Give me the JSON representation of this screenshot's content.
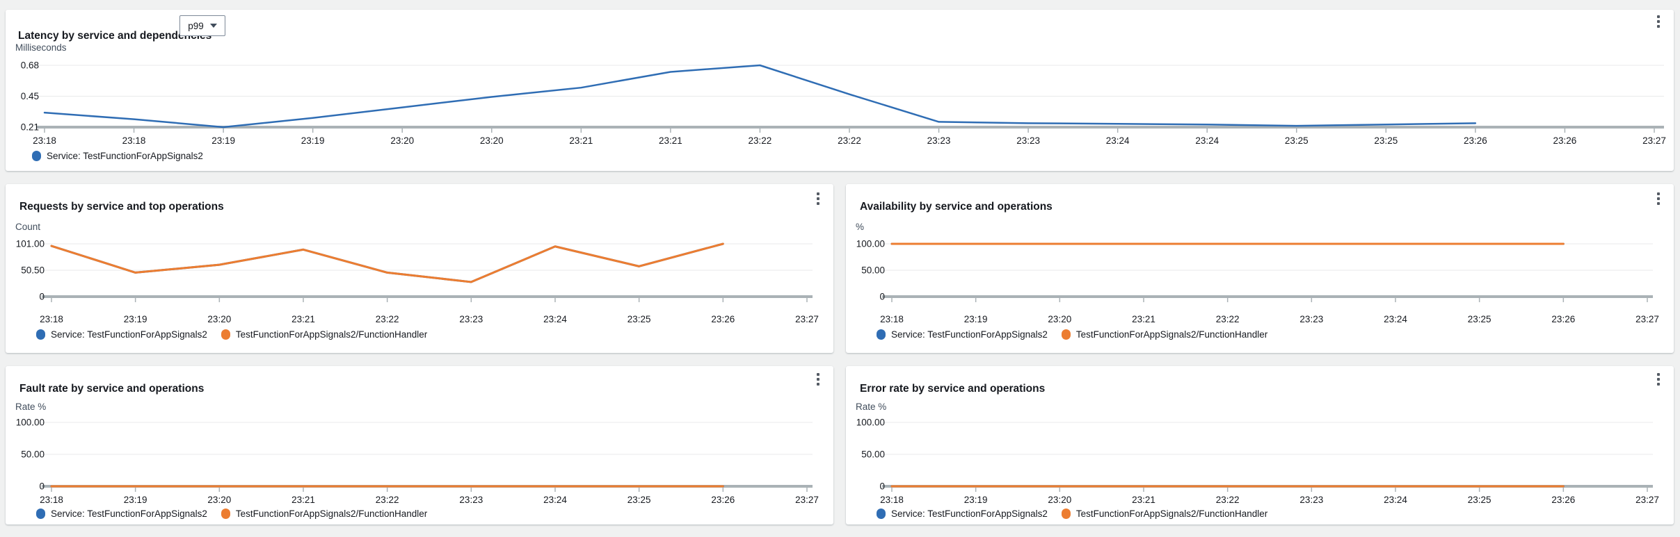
{
  "page": {
    "background": "#f0f1f1"
  },
  "colors": {
    "card_background": "#ffffff",
    "title_text": "#16191f",
    "tick_text": "#16191f",
    "unit_text": "#414d5c",
    "gridline": "#e9eaeb",
    "axis_line": "#aab2b6",
    "menu_icon": "#545b64",
    "dropdown_border": "#7d8998",
    "series_blue": "#2f6db4",
    "series_orange": "#ec7d31"
  },
  "panels": [
    {
      "title": "Latency by service and dependencies",
      "statistic_dropdown": {
        "value": "p99"
      },
      "menu_icon": "kebab-menu-icon",
      "unit": "Milliseconds",
      "legend": [
        {
          "color": "#2f6db4",
          "label": "Service: TestFunctionForAppSignals2"
        }
      ]
    },
    {
      "title": "Requests by service and top operations",
      "menu_icon": "kebab-menu-icon",
      "unit": "Count",
      "legend": [
        {
          "color": "#2f6db4",
          "label": "Service: TestFunctionForAppSignals2"
        },
        {
          "color": "#ec7d31",
          "label": "TestFunctionForAppSignals2/FunctionHandler"
        }
      ]
    },
    {
      "title": "Availability by service and operations",
      "menu_icon": "kebab-menu-icon",
      "unit": "%",
      "legend": [
        {
          "color": "#2f6db4",
          "label": "Service: TestFunctionForAppSignals2"
        },
        {
          "color": "#ec7d31",
          "label": "TestFunctionForAppSignals2/FunctionHandler"
        }
      ]
    },
    {
      "title": "Fault rate by service and operations",
      "menu_icon": "kebab-menu-icon",
      "unit": "Rate %",
      "legend": [
        {
          "color": "#2f6db4",
          "label": "Service: TestFunctionForAppSignals2"
        },
        {
          "color": "#ec7d31",
          "label": "TestFunctionForAppSignals2/FunctionHandler"
        }
      ]
    },
    {
      "title": "Error rate by service and operations",
      "menu_icon": "kebab-menu-icon",
      "unit": "Rate %",
      "legend": [
        {
          "color": "#2f6db4",
          "label": "Service: TestFunctionForAppSignals2"
        },
        {
          "color": "#ec7d31",
          "label": "TestFunctionForAppSignals2/FunctionHandler"
        }
      ]
    }
  ],
  "chart_data": [
    {
      "id": "latency",
      "type": "line",
      "title": "Latency by service and dependencies",
      "statistic": "p99",
      "ylabel": "Milliseconds",
      "x_tick_labels": [
        "23:18",
        "23:18",
        "23:19",
        "23:19",
        "23:20",
        "23:20",
        "23:21",
        "23:21",
        "23:22",
        "23:22",
        "23:23",
        "23:23",
        "23:24",
        "23:24",
        "23:25",
        "23:25",
        "23:26",
        "23:26",
        "23:27"
      ],
      "x_tick_interval_seconds": 30,
      "y_tick_labels": [
        "0.68",
        "0.45",
        "0.21"
      ],
      "ylim": [
        0.21,
        0.68
      ],
      "grid": true,
      "legend_position": "bottom-left",
      "series": [
        {
          "name": "Service: TestFunctionForAppSignals2",
          "color": "#2f6db4",
          "x_start": "23:18",
          "x_end": "23:26",
          "values": [
            0.32,
            0.27,
            0.21,
            0.28,
            0.36,
            0.44,
            0.51,
            0.63,
            0.68,
            0.46,
            0.25,
            0.24,
            0.235,
            0.23,
            0.22,
            0.23,
            0.24
          ]
        }
      ]
    },
    {
      "id": "requests",
      "type": "line",
      "title": "Requests by service and top operations",
      "ylabel": "Count",
      "x_tick_labels": [
        "23:18",
        "23:19",
        "23:20",
        "23:21",
        "23:22",
        "23:23",
        "23:24",
        "23:25",
        "23:26",
        "23:27"
      ],
      "x_tick_interval_seconds": 60,
      "y_tick_labels": [
        "101.00",
        "50.50",
        "0"
      ],
      "ylim": [
        0,
        101
      ],
      "grid": true,
      "legend_position": "bottom-left",
      "series": [
        {
          "name": "Service: TestFunctionForAppSignals2",
          "color": "#2f6db4",
          "x_start": "23:18",
          "x_end": "23:26",
          "values": [
            97,
            46,
            61,
            90,
            46,
            28,
            96,
            58,
            101
          ]
        },
        {
          "name": "TestFunctionForAppSignals2/FunctionHandler",
          "color": "#ec7d31",
          "x_start": "23:18",
          "x_end": "23:26",
          "values": [
            97,
            46,
            61,
            90,
            46,
            28,
            96,
            58,
            101
          ]
        }
      ]
    },
    {
      "id": "availability",
      "type": "line",
      "title": "Availability by service and operations",
      "ylabel": "%",
      "x_tick_labels": [
        "23:18",
        "23:19",
        "23:20",
        "23:21",
        "23:22",
        "23:23",
        "23:24",
        "23:25",
        "23:26",
        "23:27"
      ],
      "x_tick_interval_seconds": 60,
      "y_tick_labels": [
        "100.00",
        "50.00",
        "0"
      ],
      "ylim": [
        0,
        100
      ],
      "grid": true,
      "legend_position": "bottom-left",
      "series": [
        {
          "name": "Service: TestFunctionForAppSignals2",
          "color": "#2f6db4",
          "x_start": "23:18",
          "x_end": "23:26",
          "values": [
            100,
            100,
            100,
            100,
            100,
            100,
            100,
            100,
            100
          ]
        },
        {
          "name": "TestFunctionForAppSignals2/FunctionHandler",
          "color": "#ec7d31",
          "x_start": "23:18",
          "x_end": "23:26",
          "values": [
            100,
            100,
            100,
            100,
            100,
            100,
            100,
            100,
            100
          ]
        }
      ]
    },
    {
      "id": "fault_rate",
      "type": "line",
      "title": "Fault rate by service and operations",
      "ylabel": "Rate %",
      "x_tick_labels": [
        "23:18",
        "23:19",
        "23:20",
        "23:21",
        "23:22",
        "23:23",
        "23:24",
        "23:25",
        "23:26",
        "23:27"
      ],
      "x_tick_interval_seconds": 60,
      "y_tick_labels": [
        "100.00",
        "50.00",
        "0"
      ],
      "ylim": [
        0,
        100
      ],
      "grid": true,
      "legend_position": "bottom-left",
      "series": [
        {
          "name": "Service: TestFunctionForAppSignals2",
          "color": "#2f6db4",
          "x_start": "23:18",
          "x_end": "23:26",
          "values": [
            0,
            0,
            0,
            0,
            0,
            0,
            0,
            0,
            0
          ]
        },
        {
          "name": "TestFunctionForAppSignals2/FunctionHandler",
          "color": "#ec7d31",
          "x_start": "23:18",
          "x_end": "23:26",
          "values": [
            0,
            0,
            0,
            0,
            0,
            0,
            0,
            0,
            0
          ]
        }
      ]
    },
    {
      "id": "error_rate",
      "type": "line",
      "title": "Error rate by service and operations",
      "ylabel": "Rate %",
      "x_tick_labels": [
        "23:18",
        "23:19",
        "23:20",
        "23:21",
        "23:22",
        "23:23",
        "23:24",
        "23:25",
        "23:26",
        "23:27"
      ],
      "x_tick_interval_seconds": 60,
      "y_tick_labels": [
        "100.00",
        "50.00",
        "0"
      ],
      "ylim": [
        0,
        100
      ],
      "grid": true,
      "legend_position": "bottom-left",
      "series": [
        {
          "name": "Service: TestFunctionForAppSignals2",
          "color": "#2f6db4",
          "x_start": "23:18",
          "x_end": "23:26",
          "values": [
            0,
            0,
            0,
            0,
            0,
            0,
            0,
            0,
            0
          ]
        },
        {
          "name": "TestFunctionForAppSignals2/FunctionHandler",
          "color": "#ec7d31",
          "x_start": "23:18",
          "x_end": "23:26",
          "values": [
            0,
            0,
            0,
            0,
            0,
            0,
            0,
            0,
            0
          ]
        }
      ]
    }
  ]
}
